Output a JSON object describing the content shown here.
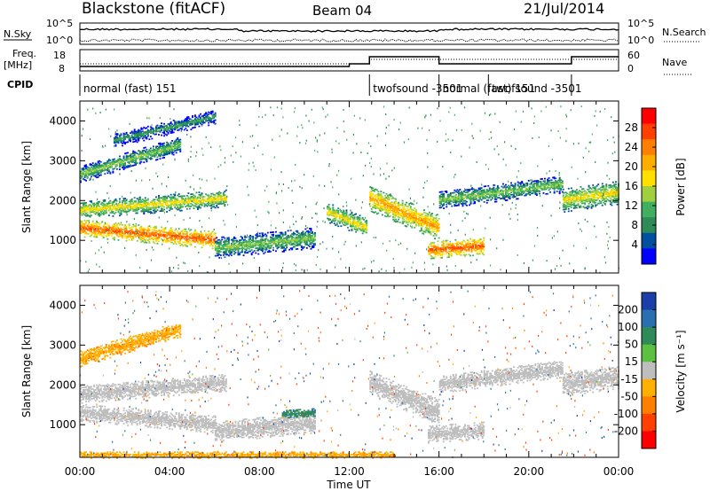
{
  "header": {
    "station": "Blackstone (fitACF)",
    "beam": "Beam 04",
    "date": "21/Jul/2014"
  },
  "noise_panel": {
    "left_label": "N.Sky",
    "right_label": "N.Search",
    "ticks": [
      "10^5",
      "10^0"
    ]
  },
  "freq_panel": {
    "left_label_1": "Freq.",
    "left_label_2": "[MHz]",
    "left_ticks": [
      "18",
      "8"
    ],
    "right_label": "Nave",
    "right_ticks": [
      "60",
      "0"
    ]
  },
  "cpid_panel": {
    "label": "CPID",
    "segments": [
      {
        "start": 0,
        "end": 12.9,
        "name": "normal (fast) 151"
      },
      {
        "start": 12.9,
        "end": 16.0,
        "name": "twofsound -3501"
      },
      {
        "start": 16.0,
        "end": 18.2,
        "name": "normal (fast) 151"
      },
      {
        "start": 18.2,
        "end": 21.9,
        "name": "twofsound -3501"
      },
      {
        "start": 21.9,
        "end": 24,
        "name": ""
      }
    ]
  },
  "chart_data": [
    {
      "type": "heatmap",
      "title": "Power",
      "xlabel": "Time UT",
      "ylabel": "Slant Range [km]",
      "xlim": [
        0,
        24
      ],
      "ylim": [
        180,
        4500
      ],
      "x_ticks": [
        0,
        4,
        8,
        12,
        16,
        20,
        24
      ],
      "x_tick_labels": [
        "00:00",
        "04:00",
        "08:00",
        "12:00",
        "16:00",
        "20:00",
        "00:00"
      ],
      "y_ticks": [
        1000,
        2000,
        3000,
        4000
      ],
      "y_tick_labels": [
        "1000",
        "2000",
        "3000",
        "4000"
      ],
      "colorbar": {
        "label": "Power [dB]",
        "ticks": [
          "28",
          "24",
          "20",
          "16",
          "12",
          "8",
          "4"
        ],
        "colors": [
          "#ff0000",
          "#ff4000",
          "#ff7f00",
          "#ffae00",
          "#ffe000",
          "#a0d040",
          "#40b060",
          "#2e8b57",
          "#0050a0",
          "#0000ff"
        ]
      },
      "echo_bands": [
        {
          "t0": 0.0,
          "t1": 6.0,
          "r0": 1300,
          "r1": 1000,
          "w": 220,
          "value": 24
        },
        {
          "t0": 0.0,
          "t1": 6.5,
          "r0": 1750,
          "r1": 2050,
          "w": 220,
          "value": 16
        },
        {
          "t0": 0.0,
          "t1": 4.5,
          "r0": 2650,
          "r1": 3400,
          "w": 200,
          "value": 12
        },
        {
          "t0": 1.5,
          "t1": 6.0,
          "r0": 3500,
          "r1": 4100,
          "w": 180,
          "value": 8
        },
        {
          "t0": 6.0,
          "t1": 10.5,
          "r0": 800,
          "r1": 1050,
          "w": 260,
          "value": 12
        },
        {
          "t0": 11.0,
          "t1": 12.8,
          "r0": 1700,
          "r1": 1300,
          "w": 250,
          "value": 16
        },
        {
          "t0": 12.9,
          "t1": 16.0,
          "r0": 2050,
          "r1": 1300,
          "w": 320,
          "value": 20
        },
        {
          "t0": 15.5,
          "t1": 18.0,
          "r0": 750,
          "r1": 850,
          "w": 220,
          "value": 24
        },
        {
          "t0": 16.0,
          "t1": 21.5,
          "r0": 2000,
          "r1": 2400,
          "w": 220,
          "value": 12
        },
        {
          "t0": 21.5,
          "t1": 24.0,
          "r0": 2000,
          "r1": 2200,
          "w": 300,
          "value": 16
        }
      ]
    },
    {
      "type": "heatmap",
      "title": "Velocity",
      "xlabel": "Time UT",
      "ylabel": "Slant Range [km]",
      "xlim": [
        0,
        24
      ],
      "ylim": [
        180,
        4500
      ],
      "x_ticks": [
        0,
        4,
        8,
        12,
        16,
        20,
        24
      ],
      "x_tick_labels": [
        "00:00",
        "04:00",
        "08:00",
        "12:00",
        "16:00",
        "20:00",
        "00:00"
      ],
      "y_ticks": [
        1000,
        2000,
        3000,
        4000
      ],
      "y_tick_labels": [
        "1000",
        "2000",
        "3000",
        "4000"
      ],
      "colorbar": {
        "label": "Velocity [m s⁻¹]",
        "ticks": [
          "200",
          "100",
          "50",
          "15",
          "-15",
          "-50",
          "-100",
          "-200"
        ],
        "colors": [
          "#1a3fa8",
          "#2a6fb0",
          "#2e8b57",
          "#5cc040",
          "#bebebe",
          "#ffb000",
          "#ff8000",
          "#ff4000",
          "#ff0000"
        ]
      },
      "echo_bands": [
        {
          "t0": 0.0,
          "t1": 6.0,
          "r0": 1300,
          "r1": 1000,
          "w": 220,
          "value": 0
        },
        {
          "t0": 0.0,
          "t1": 6.5,
          "r0": 1750,
          "r1": 2050,
          "w": 220,
          "value": 0
        },
        {
          "t0": 0.0,
          "t1": 4.5,
          "r0": 2650,
          "r1": 3400,
          "w": 200,
          "value": -40
        },
        {
          "t0": 6.0,
          "t1": 10.5,
          "r0": 800,
          "r1": 1050,
          "w": 260,
          "value": 0
        },
        {
          "t0": 9.0,
          "t1": 10.5,
          "r0": 1250,
          "r1": 1300,
          "w": 120,
          "value": 60
        },
        {
          "t0": 12.9,
          "t1": 16.0,
          "r0": 2050,
          "r1": 1300,
          "w": 320,
          "value": 0
        },
        {
          "t0": 15.5,
          "t1": 18.0,
          "r0": 750,
          "r1": 850,
          "w": 220,
          "value": 0
        },
        {
          "t0": 16.0,
          "t1": 21.5,
          "r0": 2000,
          "r1": 2400,
          "w": 220,
          "value": 0
        },
        {
          "t0": 21.5,
          "t1": 24.0,
          "r0": 2000,
          "r1": 2200,
          "w": 300,
          "value": 0
        },
        {
          "t0": 0.0,
          "t1": 14.0,
          "r0": 230,
          "r1": 230,
          "w": 80,
          "value": -40
        }
      ]
    }
  ]
}
